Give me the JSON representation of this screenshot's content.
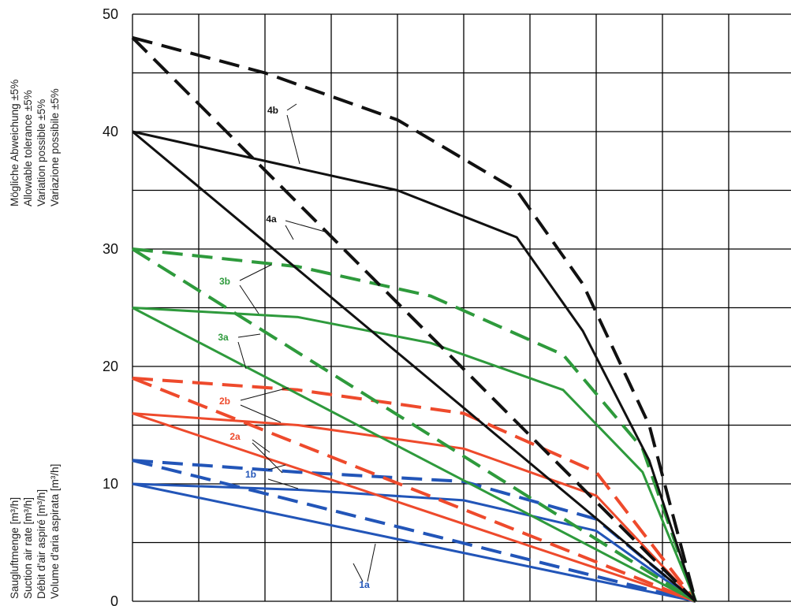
{
  "tolerance_note": [
    "Mögliche Abweichung ±5%",
    "Allowable tolerance ±5%",
    "Variation possible ±5%",
    "Variazione possibile ±5%"
  ],
  "y_axis_title": [
    "Saugluftmenge [m³/h]",
    "Suction air rate [m³/h]",
    "Débit d'air aspiré [m³/h]",
    "Volume d'aria aspirata [m³/h]"
  ],
  "chart_data": {
    "type": "line",
    "ylim": [
      0,
      50
    ],
    "yticks": [
      "0",
      "10",
      "20",
      "30",
      "40",
      "50"
    ],
    "xlim": [
      0,
      10
    ],
    "x_tick_labels_shown": false,
    "grid": true,
    "colors": {
      "blue": "#2255b8",
      "red": "#ee4a2c",
      "green": "#2e9a3c",
      "black": "#111111"
    },
    "series": [
      {
        "color": "#2255b8",
        "dash": true,
        "x": [
          0,
          2.5,
          5,
          7,
          8.5
        ],
        "y": [
          12,
          11,
          10.2,
          7,
          0
        ]
      },
      {
        "color": "#2255b8",
        "dash": true,
        "x": [
          0,
          8.5
        ],
        "y": [
          12,
          0
        ]
      },
      {
        "color": "#2255b8",
        "dash": false,
        "x": [
          0,
          2.5,
          5,
          7,
          8.5
        ],
        "y": [
          10,
          9.5,
          8.6,
          6,
          0
        ]
      },
      {
        "color": "#2255b8",
        "dash": false,
        "x": [
          0,
          8.5
        ],
        "y": [
          10,
          0
        ]
      },
      {
        "color": "#ee4a2c",
        "dash": true,
        "x": [
          0,
          2.5,
          5,
          7,
          8.5
        ],
        "y": [
          19,
          18,
          16,
          11,
          0
        ]
      },
      {
        "color": "#ee4a2c",
        "dash": true,
        "x": [
          0,
          8.5
        ],
        "y": [
          19,
          0
        ]
      },
      {
        "color": "#ee4a2c",
        "dash": false,
        "x": [
          0,
          2.5,
          5,
          7,
          8.5
        ],
        "y": [
          16,
          15,
          13,
          9,
          0
        ]
      },
      {
        "color": "#ee4a2c",
        "dash": false,
        "x": [
          0,
          8.5
        ],
        "y": [
          16,
          0
        ]
      },
      {
        "color": "#2e9a3c",
        "dash": true,
        "x": [
          0,
          2.5,
          4.5,
          6.5,
          7.7,
          8.5
        ],
        "y": [
          30,
          28.5,
          26,
          21,
          13,
          0
        ]
      },
      {
        "color": "#2e9a3c",
        "dash": true,
        "x": [
          0,
          8.5
        ],
        "y": [
          30,
          0
        ]
      },
      {
        "color": "#2e9a3c",
        "dash": false,
        "x": [
          0,
          2.5,
          4.5,
          6.5,
          7.7,
          8.5
        ],
        "y": [
          25,
          24.2,
          22,
          18,
          11,
          0
        ]
      },
      {
        "color": "#2e9a3c",
        "dash": false,
        "x": [
          0,
          8.5
        ],
        "y": [
          25,
          0
        ]
      },
      {
        "color": "#111111",
        "dash": true,
        "x": [
          0,
          2,
          4,
          5.8,
          6.8,
          7.8,
          8.5
        ],
        "y": [
          48,
          45,
          41,
          35,
          27,
          15,
          0
        ]
      },
      {
        "color": "#111111",
        "dash": true,
        "x": [
          0,
          8.5
        ],
        "y": [
          48,
          0
        ]
      },
      {
        "color": "#111111",
        "dash": false,
        "x": [
          0,
          2,
          4,
          5.8,
          6.8,
          7.8,
          8.5
        ],
        "y": [
          40,
          37.5,
          35,
          31,
          23,
          12,
          0
        ]
      },
      {
        "color": "#111111",
        "dash": false,
        "x": [
          0,
          8.5
        ],
        "y": [
          40,
          0
        ]
      }
    ],
    "annotations": [
      {
        "text": "1a",
        "color": "#2255b8"
      },
      {
        "text": "1b",
        "color": "#2255b8"
      },
      {
        "text": "2a",
        "color": "#ee4a2c"
      },
      {
        "text": "2b",
        "color": "#ee4a2c"
      },
      {
        "text": "3a",
        "color": "#2e9a3c"
      },
      {
        "text": "3b",
        "color": "#2e9a3c"
      },
      {
        "text": "4a",
        "color": "#111111"
      },
      {
        "text": "4b",
        "color": "#111111"
      }
    ]
  }
}
